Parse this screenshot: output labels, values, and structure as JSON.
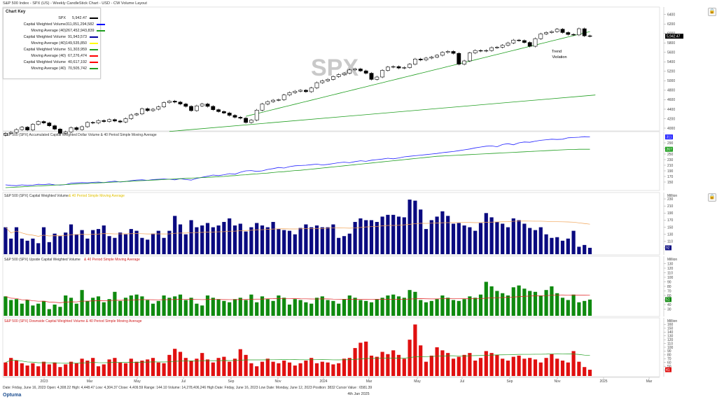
{
  "header": {
    "title": "S&P 500 Index - SPX (US) - Weekly CandleStick Chart - USD - CW Volume Layout",
    "watermark": "SPX"
  },
  "legend": {
    "title": "Chart Key",
    "rows": [
      {
        "name": "SPX",
        "value": "5,942.47",
        "color": "#000000"
      },
      {
        "name": "Capital Weighted Volume",
        "value": "311,051,294,582",
        "color": "#0000ff"
      },
      {
        "name": "Moving Average (40)",
        "value": "267,452,943,839",
        "color": "#1f9e1f"
      },
      {
        "name": "Capital Weighted Volume",
        "value": "91,943,573",
        "color": "#0000a0"
      },
      {
        "name": "Moving Average (40)",
        "value": "149,535,850",
        "color": "#ffff00"
      },
      {
        "name": "Capital Weighted Volume",
        "value": "51,303,959",
        "color": "#1f9e1f"
      },
      {
        "name": "Moving Average (40)",
        "value": "67,276,474",
        "color": "#ff0000"
      },
      {
        "name": "Capital Weighted Volume",
        "value": "40,617,192",
        "color": "#ff0000"
      },
      {
        "name": "Moving Average (40)",
        "value": "70,505,742",
        "color": "#1f9e1f"
      }
    ]
  },
  "panels": {
    "price": {
      "title": "",
      "last_label": "5,942.47"
    },
    "cwdv": {
      "title": "S&P 500 (SPX)  Accumulated Capital Weighted Dollar Volume & 40 Period Simple Moving Average",
      "last_label": "311",
      "ma_label": "267"
    },
    "cwv": {
      "title": "S&P 500 (SPX)  Capital Weighted Volume",
      "ma_title": "& 40 Period Simple Moving Average",
      "unit": "Million",
      "last_label": "92"
    },
    "up": {
      "title": "S&P 500 (SPX)  Upside Capital Weighted Volume",
      "ma_title": "& 40 Period Simple Moving Average",
      "unit": "Million",
      "last_label": "51"
    },
    "down": {
      "title": "S&P 500 (SPX)  Downside Capital Weighted Volume & 40 Period Simple Moving Average",
      "unit": "Million",
      "last_label": "41"
    }
  },
  "annotation": {
    "line1": "Trend",
    "line2": "Violation"
  },
  "xaxis": {
    "labels": [
      "2023",
      "Mar",
      "May",
      "Jul",
      "Sep",
      "Nov",
      "2024",
      "Mar",
      "May",
      "Jul",
      "Sep",
      "Nov",
      "2025",
      "Mar"
    ]
  },
  "status_bar": "Date: Friday, June 16, 2023 Open: 4,308.22 High: 4,448.47 Low: 4,304.37 Close: 4,409.59 Range: 144.10 Volume: 14,278,406,246 High Date: Friday, June 16, 2023 Low Date: Monday, June 12, 2023 Position: 3832 Cursor Value : 6581.39",
  "footer_date": "4th Jan 2025",
  "logo": "Optuma",
  "colors": {
    "candle_up": "#ffffff",
    "candle_down": "#000000",
    "cwv_bar": "#0a0a80",
    "up_bar": "#0f8a0f",
    "down_bar": "#e01010",
    "ma_green": "#1f9e1f",
    "cwdv_line": "#2222ff",
    "ma_orange": "#f0a050"
  },
  "chart_data": [
    {
      "type": "candlestick",
      "title": "S&P 500 Index - SPX (US) - Weekly CandleStick Chart",
      "ylim": [
        4000,
        6500
      ],
      "yticks": [
        4000,
        4200,
        4400,
        4600,
        4800,
        5000,
        5200,
        5400,
        5600,
        5800,
        6000,
        6200,
        6400
      ],
      "start_close": 3850,
      "closes": [
        3890,
        3910,
        3970,
        4020,
        3960,
        4080,
        4140,
        4110,
        4050,
        3980,
        3890,
        3920,
        4010,
        3970,
        4030,
        4120,
        4110,
        4160,
        4140,
        4180,
        4150,
        4130,
        4200,
        4280,
        4300,
        4410,
        4370,
        4400,
        4450,
        4540,
        4570,
        4550,
        4510,
        4460,
        4370,
        4470,
        4510,
        4460,
        4390,
        4350,
        4320,
        4270,
        4230,
        4210,
        4120,
        4170,
        4380,
        4510,
        4560,
        4590,
        4600,
        4700,
        4750,
        4780,
        4800,
        4770,
        4850,
        4960,
        5000,
        5030,
        5090,
        5130,
        5160,
        5230,
        5250,
        5210,
        5160,
        5030,
        5080,
        5220,
        5290,
        5300,
        5270,
        5280,
        5350,
        5460,
        5440,
        5480,
        5500,
        5540,
        5600,
        5620,
        5580,
        5350,
        5420,
        5590,
        5640,
        5630,
        5640,
        5700,
        5710,
        5750,
        5800,
        5860,
        5850,
        5810,
        5730,
        5890,
        5990,
        6020,
        6040,
        6090,
        6020,
        5980,
        5970,
        6100,
        5950,
        5942
      ],
      "price_ma40_start": 4250,
      "price_ma40_end": 6040
    },
    {
      "type": "line",
      "title": "S&P 500 (SPX)  Accumulated Capital Weighted Dollar Volume & 40 Period Simple Moving Average",
      "ylim": [
        130,
        320
      ],
      "yticks": [
        150,
        170,
        190,
        210,
        230,
        250,
        270,
        290
      ],
      "series": [
        {
          "name": "Capital Weighted Volume",
          "values": [
            140,
            138,
            137,
            140,
            138,
            139,
            142,
            141,
            143,
            140,
            139,
            141,
            146,
            147,
            148,
            147,
            149,
            150,
            148,
            151,
            153,
            150,
            152,
            155,
            157,
            158,
            156,
            159,
            160,
            161,
            160,
            158,
            162,
            159,
            157,
            163,
            167,
            171,
            175,
            173,
            176,
            180,
            178,
            185,
            190,
            191,
            188,
            190,
            195,
            198,
            202,
            200,
            205,
            208,
            209,
            210,
            212,
            214,
            211,
            213,
            216,
            219,
            221,
            219,
            223,
            226,
            224,
            228,
            230,
            232,
            235,
            233,
            236,
            240,
            242,
            244,
            246,
            248,
            250,
            252,
            255,
            257,
            259,
            262,
            265,
            268,
            272,
            275,
            278,
            279,
            276,
            284,
            287,
            283,
            290,
            293,
            292,
            296,
            299,
            301,
            303,
            302,
            303,
            308,
            309,
            310,
            312,
            311
          ]
        },
        {
          "name": "Moving Average (40)",
          "values": [
            130,
            131,
            132,
            133,
            134,
            135,
            136,
            137,
            138,
            139,
            140,
            141,
            142,
            143,
            144,
            145,
            146,
            147,
            148,
            149,
            150,
            151,
            152,
            153,
            154,
            155,
            156,
            157,
            158,
            159,
            160,
            161,
            162,
            163,
            164,
            165,
            166,
            167,
            168,
            169,
            170,
            172,
            173,
            175,
            176,
            178,
            179,
            181,
            182,
            184,
            186,
            187,
            189,
            191,
            192,
            194,
            196,
            198,
            200,
            202,
            204,
            206,
            208,
            210,
            212,
            214,
            216,
            218,
            220,
            222,
            224,
            226,
            228,
            230,
            232,
            234,
            236,
            238,
            240,
            242,
            243,
            244,
            245,
            246,
            247,
            248,
            249,
            250,
            251,
            252,
            253,
            254,
            255,
            256,
            257,
            258,
            259,
            260,
            261,
            262,
            263,
            264,
            265,
            266,
            266,
            267,
            267,
            267
          ]
        }
      ]
    },
    {
      "type": "bar",
      "title": "S&P 500 (SPX)  Capital Weighted Volume",
      "ylabel": "Million",
      "ylim": [
        80,
        240
      ],
      "yticks": [
        92,
        110,
        130,
        150,
        170,
        190,
        210,
        230
      ],
      "values": [
        150,
        118,
        150,
        118,
        112,
        118,
        105,
        150,
        108,
        132,
        125,
        135,
        158,
        130,
        142,
        118,
        142,
        145,
        155,
        125,
        120,
        135,
        130,
        145,
        140,
        120,
        115,
        132,
        140,
        120,
        140,
        182,
        158,
        130,
        170,
        150,
        155,
        162,
        150,
        155,
        165,
        175,
        155,
        160,
        138,
        150,
        162,
        155,
        150,
        165,
        145,
        142,
        140,
        130,
        148,
        158,
        150,
        155,
        150,
        150,
        158,
        120,
        125,
        132,
        165,
        175,
        170,
        170,
        165,
        180,
        185,
        185,
        180,
        178,
        228,
        225,
        200,
        145,
        170,
        180,
        195,
        182,
        160,
        162,
        155,
        150,
        140,
        162,
        190,
        178,
        165,
        160,
        150,
        175,
        170,
        160,
        148,
        142,
        150,
        130,
        120,
        122,
        112,
        118,
        140,
        95,
        100,
        92
      ]
    },
    {
      "type": "bar",
      "title": "S&P 500 (SPX)  Upside Capital Weighted Volume",
      "ylabel": "Million",
      "ylim": [
        20,
        140
      ],
      "yticks": [
        30,
        40,
        50,
        60,
        70,
        80,
        90,
        100,
        110,
        120,
        130
      ],
      "values": [
        58,
        50,
        52,
        42,
        50,
        38,
        42,
        48,
        30,
        40,
        35,
        60,
        55,
        42,
        72,
        48,
        55,
        58,
        45,
        52,
        68,
        48,
        55,
        60,
        62,
        58,
        50,
        42,
        48,
        60,
        55,
        58,
        62,
        50,
        55,
        42,
        38,
        60,
        55,
        52,
        48,
        45,
        52,
        55,
        50,
        62,
        45,
        58,
        52,
        48,
        60,
        55,
        40,
        52,
        50,
        45,
        42,
        55,
        58,
        50,
        48,
        42,
        52,
        60,
        55,
        50,
        48,
        45,
        52,
        55,
        60,
        62,
        58,
        55,
        72,
        68,
        50,
        45,
        48,
        52,
        60,
        55,
        50,
        48,
        52,
        58,
        55,
        62,
        90,
        80,
        70,
        65,
        60,
        78,
        82,
        75,
        70,
        68,
        60,
        72,
        80,
        65,
        55,
        50,
        62,
        45,
        48,
        51
      ]
    },
    {
      "type": "bar",
      "title": "S&P 500 (SPX)  Downside Capital Weighted Volume & 40 Period Simple Moving Average",
      "ylabel": "Million",
      "ylim": [
        30,
        170
      ],
      "yticks": [
        40,
        50,
        60,
        70,
        80,
        90,
        100,
        110,
        120,
        130,
        140,
        150,
        160
      ],
      "values": [
        60,
        72,
        65,
        58,
        52,
        58,
        50,
        62,
        55,
        60,
        48,
        55,
        62,
        58,
        70,
        65,
        72,
        50,
        55,
        68,
        72,
        60,
        58,
        70,
        62,
        65,
        68,
        72,
        60,
        58,
        80,
        96,
        88,
        72,
        65,
        70,
        85,
        68,
        60,
        72,
        75,
        62,
        70,
        95,
        80,
        58,
        50,
        62,
        70,
        62,
        58,
        65,
        60,
        52,
        58,
        65,
        72,
        58,
        62,
        60,
        55,
        58,
        70,
        72,
        98,
        112,
        115,
        78,
        75,
        88,
        82,
        92,
        80,
        70,
        120,
        160,
        105,
        62,
        78,
        100,
        92,
        85,
        70,
        75,
        80,
        85,
        65,
        72,
        90,
        85,
        80,
        70,
        65,
        75,
        78,
        70,
        72,
        68,
        60,
        72,
        82,
        70,
        65,
        60,
        90,
        62,
        48,
        41
      ]
    }
  ]
}
